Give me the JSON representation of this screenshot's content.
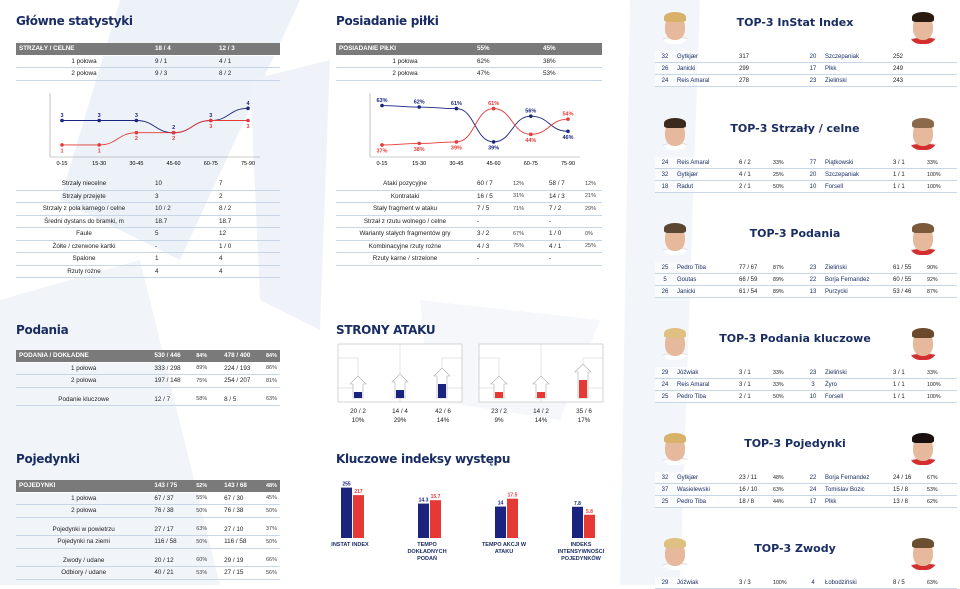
{
  "titles": {
    "main_stats": "Główne statystyki",
    "possession": "Posiadanie piłki",
    "passes": "Podania",
    "duels": "Pojedynki",
    "attack_sides": "STRONY ATAKU",
    "key_indices": "Kluczowe indeksy występu"
  },
  "shots": {
    "header": [
      "STRZAŁY / CELNE",
      "18 / 4",
      "12 / 3"
    ],
    "rows": [
      [
        "1 połowa",
        "9 / 1",
        "4 / 1"
      ],
      [
        "2 połowa",
        "9 / 3",
        "8 / 2"
      ]
    ]
  },
  "main_rows": [
    [
      "Strzały niecelne",
      "10",
      "7"
    ],
    [
      "Strzały przejęte",
      "3",
      "2"
    ],
    [
      "Strzały z pola karnego / celne",
      "10 / 2",
      "8 / 2"
    ],
    [
      "Średni dystans do bramki, m",
      "18.7",
      "18.7"
    ],
    [
      "Faule",
      "5",
      "12"
    ],
    [
      "Żółte / czerwone kartki",
      "-",
      "1 / 0"
    ],
    [
      "Spalone",
      "1",
      "4"
    ],
    [
      "Rzuty rożne",
      "4",
      "4"
    ]
  ],
  "possession_tbl": {
    "header": [
      "POSIADANIE PIŁKI",
      "55%",
      "45%"
    ],
    "rows": [
      [
        "1 połowa",
        "62%",
        "38%"
      ],
      [
        "2 połowa",
        "47%",
        "53%"
      ]
    ]
  },
  "attack_rows": [
    [
      "Ataki pozycyjne",
      "60 / 7",
      "12%",
      "58 / 7",
      "12%"
    ],
    [
      "Kontrataki",
      "16 / 5",
      "31%",
      "14 / 3",
      "21%"
    ],
    [
      "Stały fragment w ataku",
      "7 / 5",
      "71%",
      "7 / 2",
      "29%"
    ],
    [
      "Strzał z rzutu wolnego / celne",
      "-",
      "",
      "-",
      ""
    ],
    [
      "Warianty stałych fragmentów gry",
      "3 / 2",
      "67%",
      "1 / 0",
      "0%"
    ],
    [
      "Kombinacyjne rzuty rożne",
      "4 / 3",
      "75%",
      "4 / 1",
      "25%"
    ],
    [
      "Rzuty karne / strzelone",
      "-",
      "",
      "-",
      ""
    ]
  ],
  "passes_tbl": {
    "header": [
      "PODANIA / DOKŁADNE",
      "530 / 446",
      "84%",
      "478 / 400",
      "84%"
    ],
    "rows": [
      [
        "1 połowa",
        "333 / 298",
        "89%",
        "224 / 193",
        "86%"
      ],
      [
        "2 połowa",
        "197 / 148",
        "75%",
        "254 / 207",
        "81%"
      ],
      [
        "Podanie kluczowe",
        "12 / 7",
        "58%",
        "8 / 5",
        "63%"
      ]
    ]
  },
  "duels_tbl": {
    "header": [
      "POJEDYNKI",
      "143 / 75",
      "52%",
      "143 / 68",
      "48%"
    ],
    "rows": [
      [
        "1 połowa",
        "67 / 37",
        "55%",
        "67 / 30",
        "45%"
      ],
      [
        "2 połowa",
        "76 / 38",
        "50%",
        "76 / 38",
        "50%"
      ],
      [
        "Pojedynki w powietrzu",
        "27 / 17",
        "63%",
        "27 / 10",
        "37%"
      ],
      [
        "Pojedynki na ziemi",
        "116 / 58",
        "50%",
        "116 / 58",
        "50%"
      ],
      [
        "Zwody / udane",
        "20 / 12",
        "60%",
        "29 / 19",
        "66%"
      ],
      [
        "Odbiory / udane",
        "40 / 21",
        "53%",
        "27 / 15",
        "56%"
      ]
    ]
  },
  "chart_data": [
    {
      "type": "line",
      "title": "",
      "x": [
        "0-15",
        "15-30",
        "30-45",
        "45-60",
        "60-75",
        "75-90"
      ],
      "series": [
        {
          "color": "#1a237e",
          "values": [
            3,
            3,
            3,
            2,
            3,
            4
          ]
        },
        {
          "color": "#e53935",
          "values": [
            1,
            1,
            2,
            2,
            3,
            3
          ]
        }
      ]
    },
    {
      "type": "line",
      "title": "",
      "x": [
        "0-15",
        "15-30",
        "30-45",
        "45-60",
        "60-75",
        "75-90"
      ],
      "series": [
        {
          "color": "#1a237e",
          "values": [
            63,
            62,
            61,
            39,
            56,
            46
          ],
          "labels": [
            "63%",
            "62%",
            "61%",
            "39%",
            "56%",
            "46%"
          ]
        },
        {
          "color": "#e53935",
          "values": [
            37,
            38,
            39,
            61,
            44,
            54
          ],
          "labels": [
            "37%",
            "38%",
            "39%",
            "61%",
            "44%",
            "54%"
          ]
        }
      ]
    },
    {
      "type": "bar",
      "title": "",
      "categories": [
        "INSTAT INDEX",
        "TEMPO DOKŁADNYCH PODAŃ",
        "TEMPO AKCJI W ATAKU",
        "INDEKS INTENSYWNOŚCI POJEDYNKÓW"
      ],
      "series": [
        {
          "color": "#1a237e",
          "values": [
            255,
            14.3,
            14,
            7.8
          ]
        },
        {
          "color": "#e53935",
          "values": [
            217,
            15.7,
            17.5,
            5.8
          ]
        }
      ]
    }
  ],
  "attack_sides": {
    "home": [
      [
        "20 / 2",
        "10%"
      ],
      [
        "14 / 4",
        "29%"
      ],
      [
        "42 / 6",
        "14%"
      ]
    ],
    "away": [
      [
        "23 / 2",
        "9%"
      ],
      [
        "14 / 2",
        "14%"
      ],
      [
        "35 / 6",
        "17%"
      ]
    ]
  },
  "top": [
    {
      "title": "TOP-3 InStat Index",
      "rows": [
        [
          "32",
          "Gytkjær",
          "317",
          "",
          "20",
          "Szczepaniak",
          "252",
          ""
        ],
        [
          "26",
          "Janicki",
          "299",
          "",
          "17",
          "Plkk",
          "249",
          ""
        ],
        [
          "24",
          "Reis Amaral",
          "278",
          "",
          "23",
          "Zieliński",
          "243",
          ""
        ]
      ]
    },
    {
      "title": "TOP-3 Strzały / celne",
      "rows": [
        [
          "24",
          "Reis Amaral",
          "6 / 2",
          "33%",
          "77",
          "Piątkowski",
          "3 / 1",
          "33%"
        ],
        [
          "32",
          "Gytkjær",
          "4 / 1",
          "25%",
          "20",
          "Szczepaniak",
          "1 / 1",
          "100%"
        ],
        [
          "18",
          "Radut",
          "2 / 1",
          "50%",
          "10",
          "Forsell",
          "1 / 1",
          "100%"
        ]
      ]
    },
    {
      "title": "TOP-3 Podania",
      "rows": [
        [
          "25",
          "Pedro Tiba",
          "77 / 67",
          "87%",
          "23",
          "Zieliński",
          "61 / 55",
          "90%"
        ],
        [
          "5",
          "Goutas",
          "66 / 59",
          "89%",
          "22",
          "Borja Fernandez",
          "60 / 55",
          "92%"
        ],
        [
          "26",
          "Janicki",
          "61 / 54",
          "89%",
          "13",
          "Purzycki",
          "53 / 46",
          "87%"
        ]
      ]
    },
    {
      "title": "TOP-3 Podania kluczowe",
      "rows": [
        [
          "29",
          "Jóźwiak",
          "3 / 1",
          "33%",
          "23",
          "Zieliński",
          "3 / 1",
          "33%"
        ],
        [
          "24",
          "Reis Amaral",
          "3 / 1",
          "33%",
          "3",
          "Żyro",
          "1 / 1",
          "100%"
        ],
        [
          "25",
          "Pedro Tiba",
          "2 / 1",
          "50%",
          "10",
          "Forsell",
          "1 / 1",
          "100%"
        ]
      ]
    },
    {
      "title": "TOP-3 Pojedynki",
      "rows": [
        [
          "32",
          "Gytkjær",
          "23 / 11",
          "48%",
          "22",
          "Borja Fernandez",
          "24 / 16",
          "67%"
        ],
        [
          "37",
          "Wasielewski",
          "16 / 10",
          "63%",
          "24",
          "Tomislav Bozic",
          "15 / 8",
          "53%"
        ],
        [
          "25",
          "Pedro Tiba",
          "18 / 8",
          "44%",
          "17",
          "Plkk",
          "13 / 8",
          "62%"
        ]
      ]
    },
    {
      "title": "TOP-3 Zwody",
      "rows": [
        [
          "29",
          "Jóźwiak",
          "3 / 3",
          "100%",
          "4",
          "Łobodziński",
          "8 / 5",
          "63%"
        ]
      ]
    }
  ]
}
